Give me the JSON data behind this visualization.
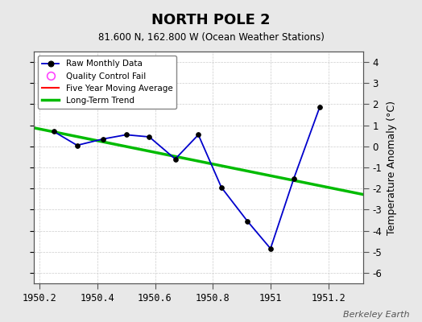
{
  "title": "NORTH POLE 2",
  "subtitle": "81.600 N, 162.800 W (Ocean Weather Stations)",
  "ylabel": "Temperature Anomaly (°C)",
  "watermark": "Berkeley Earth",
  "background_color": "#e8e8e8",
  "plot_bg_color": "#ffffff",
  "raw_x": [
    1950.25,
    1950.33,
    1950.42,
    1950.5,
    1950.58,
    1950.67,
    1950.75,
    1950.83,
    1950.92,
    1951.0,
    1951.08,
    1951.17
  ],
  "raw_y": [
    0.7,
    0.05,
    0.35,
    0.55,
    0.45,
    -0.6,
    0.55,
    -1.95,
    -3.55,
    -4.85,
    -1.55,
    1.85
  ],
  "trend_x": [
    1950.18,
    1951.32
  ],
  "trend_y": [
    0.88,
    -2.28
  ],
  "xlim": [
    1950.18,
    1951.32
  ],
  "ylim": [
    -6.5,
    4.5
  ],
  "yticks": [
    -6,
    -5,
    -4,
    -3,
    -2,
    -1,
    0,
    1,
    2,
    3,
    4
  ],
  "xticks": [
    1950.2,
    1950.4,
    1950.6,
    1950.8,
    1951.0,
    1951.2
  ],
  "xtick_labels": [
    "1950.2",
    "1950.4",
    "1950.6",
    "1950.8",
    "1951",
    "1951.2"
  ],
  "raw_line_color": "#0000cc",
  "raw_marker_face": "#000000",
  "raw_marker_edge": "#000000",
  "trend_color": "#00bb00",
  "moving_avg_color": "#ff0000",
  "qc_fail_color": "#ff44ff",
  "grid_color": "#cccccc",
  "spine_color": "#555555"
}
